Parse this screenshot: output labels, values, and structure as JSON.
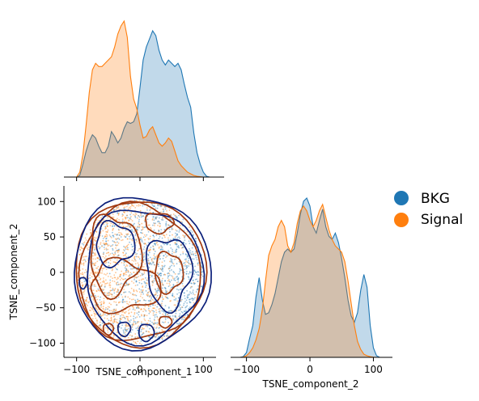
{
  "chart_data": [
    {
      "type": "area",
      "panel": "diag-x",
      "description_axis": "TSNE_component_1",
      "xlim": [
        -110,
        115
      ],
      "series": [
        {
          "name": "BKG",
          "color": "#1f77b4",
          "x": [
            -100,
            -95,
            -90,
            -85,
            -80,
            -75,
            -70,
            -65,
            -60,
            -55,
            -50,
            -45,
            -40,
            -35,
            -30,
            -25,
            -20,
            -15,
            -10,
            -5,
            0,
            5,
            10,
            15,
            20,
            25,
            30,
            35,
            40,
            45,
            50,
            55,
            60,
            65,
            70,
            75,
            80,
            85,
            90,
            95,
            100,
            105,
            110
          ],
          "density": [
            0.0,
            0.01,
            0.08,
            0.16,
            0.22,
            0.26,
            0.24,
            0.19,
            0.15,
            0.15,
            0.19,
            0.28,
            0.25,
            0.21,
            0.24,
            0.3,
            0.34,
            0.33,
            0.34,
            0.39,
            0.55,
            0.72,
            0.8,
            0.85,
            0.9,
            0.87,
            0.78,
            0.72,
            0.69,
            0.72,
            0.7,
            0.68,
            0.7,
            0.66,
            0.57,
            0.49,
            0.43,
            0.27,
            0.15,
            0.08,
            0.03,
            0.005,
            0.0
          ]
        },
        {
          "name": "Signal",
          "color": "#ff7f0e",
          "x": [
            -100,
            -95,
            -90,
            -85,
            -80,
            -75,
            -70,
            -65,
            -60,
            -55,
            -50,
            -45,
            -40,
            -35,
            -30,
            -25,
            -20,
            -15,
            -10,
            -5,
            0,
            5,
            10,
            15,
            20,
            25,
            30,
            35,
            40,
            45,
            50,
            55,
            60,
            65,
            70,
            75,
            80,
            85,
            90,
            95,
            100,
            105,
            110
          ],
          "density": [
            0.0,
            0.03,
            0.14,
            0.32,
            0.52,
            0.66,
            0.7,
            0.68,
            0.68,
            0.7,
            0.72,
            0.74,
            0.8,
            0.88,
            0.93,
            0.96,
            0.86,
            0.62,
            0.48,
            0.42,
            0.32,
            0.24,
            0.25,
            0.29,
            0.31,
            0.26,
            0.21,
            0.19,
            0.21,
            0.24,
            0.22,
            0.16,
            0.1,
            0.07,
            0.05,
            0.03,
            0.02,
            0.01,
            0.005,
            0.002,
            0.0,
            0.0,
            0.0
          ]
        }
      ]
    },
    {
      "type": "scatter",
      "panel": "offdiag",
      "xlabel": "TSNE_component_1",
      "ylabel": "TSNE_component_2",
      "xlim": [
        -120,
        120
      ],
      "ylim": [
        -120,
        122
      ],
      "xticks": [
        -100,
        0,
        100
      ],
      "yticks": [
        -100,
        -50,
        0,
        50,
        100
      ],
      "series": [
        {
          "name": "BKG",
          "color": "#1f77b4",
          "contour_color": "#0b1f7a"
        },
        {
          "name": "Signal",
          "color": "#ff7f0e",
          "contour_color": "#a1390f"
        }
      ]
    },
    {
      "type": "area",
      "panel": "diag-y",
      "xlabel": "TSNE_component_2",
      "xlim": [
        -125,
        130
      ],
      "xticks": [
        -100,
        0,
        100
      ],
      "series": [
        {
          "name": "BKG",
          "color": "#1f77b4",
          "x": [
            -110,
            -105,
            -100,
            -95,
            -90,
            -85,
            -80,
            -75,
            -70,
            -65,
            -60,
            -55,
            -50,
            -45,
            -40,
            -35,
            -30,
            -25,
            -20,
            -15,
            -10,
            -5,
            0,
            5,
            10,
            15,
            20,
            25,
            30,
            35,
            40,
            45,
            50,
            55,
            60,
            65,
            70,
            75,
            80,
            85,
            90,
            95,
            100,
            105,
            110
          ],
          "density": [
            0.0,
            0.005,
            0.03,
            0.12,
            0.2,
            0.38,
            0.5,
            0.36,
            0.27,
            0.28,
            0.33,
            0.4,
            0.5,
            0.6,
            0.66,
            0.68,
            0.66,
            0.68,
            0.78,
            0.9,
            0.98,
            1.0,
            0.95,
            0.82,
            0.78,
            0.86,
            0.93,
            0.82,
            0.76,
            0.74,
            0.78,
            0.72,
            0.62,
            0.5,
            0.36,
            0.26,
            0.22,
            0.28,
            0.42,
            0.52,
            0.44,
            0.2,
            0.06,
            0.01,
            0.0
          ]
        },
        {
          "name": "Signal",
          "color": "#ff7f0e",
          "x": [
            -110,
            -105,
            -100,
            -95,
            -90,
            -85,
            -80,
            -75,
            -70,
            -65,
            -60,
            -55,
            -50,
            -45,
            -40,
            -35,
            -30,
            -25,
            -20,
            -15,
            -10,
            -5,
            0,
            5,
            10,
            15,
            20,
            25,
            30,
            35,
            40,
            45,
            50,
            55,
            60,
            65,
            70,
            75,
            80,
            85,
            90,
            95,
            100,
            105,
            110
          ],
          "density": [
            0.0,
            0.002,
            0.01,
            0.03,
            0.06,
            0.11,
            0.18,
            0.3,
            0.48,
            0.64,
            0.7,
            0.74,
            0.82,
            0.86,
            0.82,
            0.7,
            0.66,
            0.72,
            0.84,
            0.92,
            0.95,
            0.92,
            0.86,
            0.82,
            0.86,
            0.92,
            0.96,
            0.88,
            0.8,
            0.74,
            0.7,
            0.68,
            0.66,
            0.6,
            0.48,
            0.34,
            0.2,
            0.1,
            0.05,
            0.02,
            0.01,
            0.004,
            0.001,
            0.0,
            0.0
          ]
        }
      ]
    }
  ],
  "legend": {
    "placement": "right",
    "items": [
      {
        "label": "BKG",
        "color": "#1f77b4"
      },
      {
        "label": "Signal",
        "color": "#ff7f0e"
      }
    ]
  }
}
